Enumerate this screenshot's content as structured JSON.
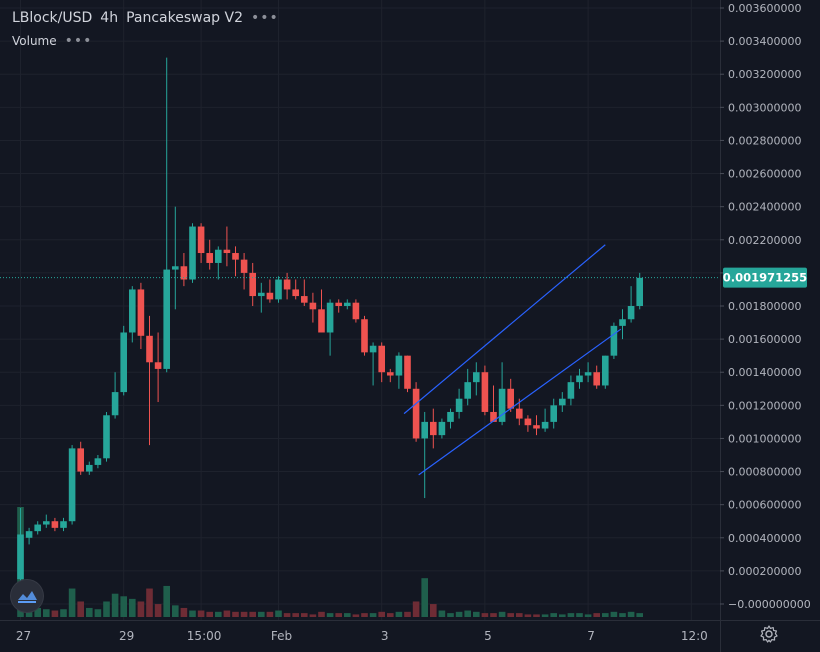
{
  "legend": {
    "symbol": "LBlock/USD",
    "interval": "4h",
    "exchange": "Pancakeswap V2",
    "more_icon": "more-dots-icon",
    "volume_label": "Volume"
  },
  "settings_icon": "gear-icon",
  "logo_icon": "tradingview-logo-icon",
  "colors": {
    "background": "#131722",
    "grid": "#1e222d",
    "up": "#26a69a",
    "down": "#ef5350",
    "volume_up": "#1f5f4c",
    "volume_down": "#6e2c35",
    "price_line": "#26a69a",
    "channel": "#2962ff",
    "axis_text": "#b2b5be"
  },
  "chart_data": {
    "type": "candlestick",
    "symbol": "LBlock/USD",
    "interval": "4h",
    "last_price": "0.001971255",
    "y_ticks": [
      "0.003600000",
      "0.003400000",
      "0.003200000",
      "0.003000000",
      "0.002800000",
      "0.002600000",
      "0.002400000",
      "0.002200000",
      "0.002000000",
      "0.001800000",
      "0.001600000",
      "0.001400000",
      "0.001200000",
      "0.001000000",
      "0.000800000",
      "0.000600000",
      "0.000400000",
      "0.000200000",
      "−0.000000000"
    ],
    "ylim": [
      0,
      0.0036
    ],
    "x_ticks": [
      {
        "label": "27",
        "index": 0
      },
      {
        "label": "29",
        "index": 12
      },
      {
        "label": "15:00",
        "index": 21
      },
      {
        "label": "Feb",
        "index": 30
      },
      {
        "label": "3",
        "index": 42
      },
      {
        "label": "5",
        "index": 54
      },
      {
        "label": "7",
        "index": 66
      },
      {
        "label": "12:0",
        "index": 78
      }
    ],
    "candles": [
      {
        "o": 0.00015,
        "h": 0.00058,
        "l": 0.0001,
        "c": 0.00042,
        "v": 0.00085
      },
      {
        "o": 0.0004,
        "h": 0.00046,
        "l": 0.00036,
        "c": 0.00044,
        "v": 0.0001
      },
      {
        "o": 0.00044,
        "h": 0.0005,
        "l": 0.00042,
        "c": 0.00048,
        "v": 7e-05
      },
      {
        "o": 0.00048,
        "h": 0.00054,
        "l": 0.00046,
        "c": 0.0005,
        "v": 6e-05
      },
      {
        "o": 0.0005,
        "h": 0.00052,
        "l": 0.00044,
        "c": 0.00046,
        "v": 5e-05
      },
      {
        "o": 0.00046,
        "h": 0.00052,
        "l": 0.00044,
        "c": 0.0005,
        "v": 6e-05
      },
      {
        "o": 0.0005,
        "h": 0.00096,
        "l": 0.00048,
        "c": 0.00094,
        "v": 0.00022
      },
      {
        "o": 0.00094,
        "h": 0.00098,
        "l": 0.00078,
        "c": 0.0008,
        "v": 0.00012
      },
      {
        "o": 0.0008,
        "h": 0.00086,
        "l": 0.00078,
        "c": 0.00084,
        "v": 7e-05
      },
      {
        "o": 0.00084,
        "h": 0.0009,
        "l": 0.00082,
        "c": 0.00088,
        "v": 6e-05
      },
      {
        "o": 0.00088,
        "h": 0.00116,
        "l": 0.00086,
        "c": 0.00114,
        "v": 0.00012
      },
      {
        "o": 0.00114,
        "h": 0.0014,
        "l": 0.00112,
        "c": 0.00128,
        "v": 0.00018
      },
      {
        "o": 0.00128,
        "h": 0.00168,
        "l": 0.00126,
        "c": 0.00164,
        "v": 0.00016
      },
      {
        "o": 0.00164,
        "h": 0.00192,
        "l": 0.00158,
        "c": 0.0019,
        "v": 0.00014
      },
      {
        "o": 0.0019,
        "h": 0.00194,
        "l": 0.00154,
        "c": 0.00162,
        "v": 0.00012
      },
      {
        "o": 0.00162,
        "h": 0.00174,
        "l": 0.00096,
        "c": 0.00146,
        "v": 0.00022
      },
      {
        "o": 0.00146,
        "h": 0.00164,
        "l": 0.00122,
        "c": 0.00142,
        "v": 0.0001
      },
      {
        "o": 0.00142,
        "h": 0.0033,
        "l": 0.0014,
        "c": 0.00202,
        "v": 0.00024
      },
      {
        "o": 0.00202,
        "h": 0.0024,
        "l": 0.00178,
        "c": 0.00204,
        "v": 9e-05
      },
      {
        "o": 0.00204,
        "h": 0.00212,
        "l": 0.00192,
        "c": 0.00196,
        "v": 7e-05
      },
      {
        "o": 0.00196,
        "h": 0.0023,
        "l": 0.00194,
        "c": 0.00228,
        "v": 5e-05
      },
      {
        "o": 0.00228,
        "h": 0.0023,
        "l": 0.00206,
        "c": 0.00212,
        "v": 5e-05
      },
      {
        "o": 0.00212,
        "h": 0.0022,
        "l": 0.00202,
        "c": 0.00206,
        "v": 4e-05
      },
      {
        "o": 0.00206,
        "h": 0.00216,
        "l": 0.00196,
        "c": 0.00214,
        "v": 4e-05
      },
      {
        "o": 0.00214,
        "h": 0.00228,
        "l": 0.00204,
        "c": 0.00212,
        "v": 5e-05
      },
      {
        "o": 0.00212,
        "h": 0.00216,
        "l": 0.00198,
        "c": 0.00208,
        "v": 4e-05
      },
      {
        "o": 0.00208,
        "h": 0.00212,
        "l": 0.0019,
        "c": 0.002,
        "v": 4e-05
      },
      {
        "o": 0.002,
        "h": 0.00206,
        "l": 0.0018,
        "c": 0.00186,
        "v": 4e-05
      },
      {
        "o": 0.00186,
        "h": 0.00194,
        "l": 0.00176,
        "c": 0.00188,
        "v": 4e-05
      },
      {
        "o": 0.00188,
        "h": 0.00196,
        "l": 0.00182,
        "c": 0.00184,
        "v": 4e-05
      },
      {
        "o": 0.00184,
        "h": 0.00198,
        "l": 0.00182,
        "c": 0.00196,
        "v": 5e-05
      },
      {
        "o": 0.00196,
        "h": 0.002,
        "l": 0.00184,
        "c": 0.0019,
        "v": 3e-05
      },
      {
        "o": 0.0019,
        "h": 0.00196,
        "l": 0.00184,
        "c": 0.00186,
        "v": 3e-05
      },
      {
        "o": 0.00186,
        "h": 0.00196,
        "l": 0.0018,
        "c": 0.00182,
        "v": 3e-05
      },
      {
        "o": 0.00182,
        "h": 0.00188,
        "l": 0.0017,
        "c": 0.00178,
        "v": 2e-05
      },
      {
        "o": 0.00178,
        "h": 0.0019,
        "l": 0.00164,
        "c": 0.00164,
        "v": 4e-05
      },
      {
        "o": 0.00164,
        "h": 0.00184,
        "l": 0.0015,
        "c": 0.00182,
        "v": 3e-05
      },
      {
        "o": 0.00182,
        "h": 0.00184,
        "l": 0.00176,
        "c": 0.0018,
        "v": 3e-05
      },
      {
        "o": 0.0018,
        "h": 0.00184,
        "l": 0.00178,
        "c": 0.00182,
        "v": 3e-05
      },
      {
        "o": 0.00182,
        "h": 0.00184,
        "l": 0.0017,
        "c": 0.00172,
        "v": 2e-05
      },
      {
        "o": 0.00172,
        "h": 0.00174,
        "l": 0.0015,
        "c": 0.00152,
        "v": 3e-05
      },
      {
        "o": 0.00152,
        "h": 0.00158,
        "l": 0.00132,
        "c": 0.00156,
        "v": 3e-05
      },
      {
        "o": 0.00156,
        "h": 0.00158,
        "l": 0.00134,
        "c": 0.0014,
        "v": 4e-05
      },
      {
        "o": 0.0014,
        "h": 0.00142,
        "l": 0.00134,
        "c": 0.00138,
        "v": 3e-05
      },
      {
        "o": 0.00138,
        "h": 0.00152,
        "l": 0.0013,
        "c": 0.0015,
        "v": 4e-05
      },
      {
        "o": 0.0015,
        "h": 0.0015,
        "l": 0.00128,
        "c": 0.0013,
        "v": 4e-05
      },
      {
        "o": 0.0013,
        "h": 0.00134,
        "l": 0.00098,
        "c": 0.001,
        "v": 0.00012
      },
      {
        "o": 0.001,
        "h": 0.00116,
        "l": 0.00064,
        "c": 0.0011,
        "v": 0.0003
      },
      {
        "o": 0.0011,
        "h": 0.00118,
        "l": 0.00094,
        "c": 0.00102,
        "v": 0.0001
      },
      {
        "o": 0.00102,
        "h": 0.00112,
        "l": 0.001,
        "c": 0.0011,
        "v": 5e-05
      },
      {
        "o": 0.0011,
        "h": 0.00118,
        "l": 0.00106,
        "c": 0.00116,
        "v": 3e-05
      },
      {
        "o": 0.00116,
        "h": 0.0013,
        "l": 0.00112,
        "c": 0.00124,
        "v": 4e-05
      },
      {
        "o": 0.00124,
        "h": 0.00142,
        "l": 0.0012,
        "c": 0.00134,
        "v": 5e-05
      },
      {
        "o": 0.00134,
        "h": 0.00146,
        "l": 0.00126,
        "c": 0.0014,
        "v": 4e-05
      },
      {
        "o": 0.0014,
        "h": 0.00144,
        "l": 0.00114,
        "c": 0.00116,
        "v": 3e-05
      },
      {
        "o": 0.00116,
        "h": 0.00132,
        "l": 0.0011,
        "c": 0.0011,
        "v": 3e-05
      },
      {
        "o": 0.0011,
        "h": 0.00146,
        "l": 0.00108,
        "c": 0.0013,
        "v": 4e-05
      },
      {
        "o": 0.0013,
        "h": 0.00136,
        "l": 0.00116,
        "c": 0.00118,
        "v": 3e-05
      },
      {
        "o": 0.00118,
        "h": 0.00124,
        "l": 0.00108,
        "c": 0.00112,
        "v": 3e-05
      },
      {
        "o": 0.00112,
        "h": 0.00114,
        "l": 0.00104,
        "c": 0.00108,
        "v": 2e-05
      },
      {
        "o": 0.00108,
        "h": 0.00114,
        "l": 0.00102,
        "c": 0.00106,
        "v": 2e-05
      },
      {
        "o": 0.00106,
        "h": 0.00118,
        "l": 0.00104,
        "c": 0.0011,
        "v": 2e-05
      },
      {
        "o": 0.0011,
        "h": 0.00124,
        "l": 0.00106,
        "c": 0.0012,
        "v": 3e-05
      },
      {
        "o": 0.0012,
        "h": 0.00128,
        "l": 0.00116,
        "c": 0.00124,
        "v": 2e-05
      },
      {
        "o": 0.00124,
        "h": 0.00138,
        "l": 0.0012,
        "c": 0.00134,
        "v": 3e-05
      },
      {
        "o": 0.00134,
        "h": 0.00142,
        "l": 0.0013,
        "c": 0.00138,
        "v": 3e-05
      },
      {
        "o": 0.00138,
        "h": 0.00146,
        "l": 0.00134,
        "c": 0.0014,
        "v": 2e-05
      },
      {
        "o": 0.0014,
        "h": 0.00144,
        "l": 0.0013,
        "c": 0.00132,
        "v": 3e-05
      },
      {
        "o": 0.00132,
        "h": 0.0015,
        "l": 0.0013,
        "c": 0.0015,
        "v": 3e-05
      },
      {
        "o": 0.0015,
        "h": 0.0017,
        "l": 0.00148,
        "c": 0.00168,
        "v": 4e-05
      },
      {
        "o": 0.00168,
        "h": 0.00178,
        "l": 0.0016,
        "c": 0.00172,
        "v": 3e-05
      },
      {
        "o": 0.00172,
        "h": 0.00192,
        "l": 0.0017,
        "c": 0.0018,
        "v": 4e-05
      },
      {
        "o": 0.0018,
        "h": 0.002,
        "l": 0.00178,
        "c": 0.00197,
        "v": 3e-05
      }
    ],
    "channel": [
      {
        "x1": 44.6,
        "y1": 0.00115,
        "x2": 68.0,
        "y2": 0.00217
      },
      {
        "x1": 46.3,
        "y1": 0.00078,
        "x2": 69.8,
        "y2": 0.00166
      }
    ]
  }
}
